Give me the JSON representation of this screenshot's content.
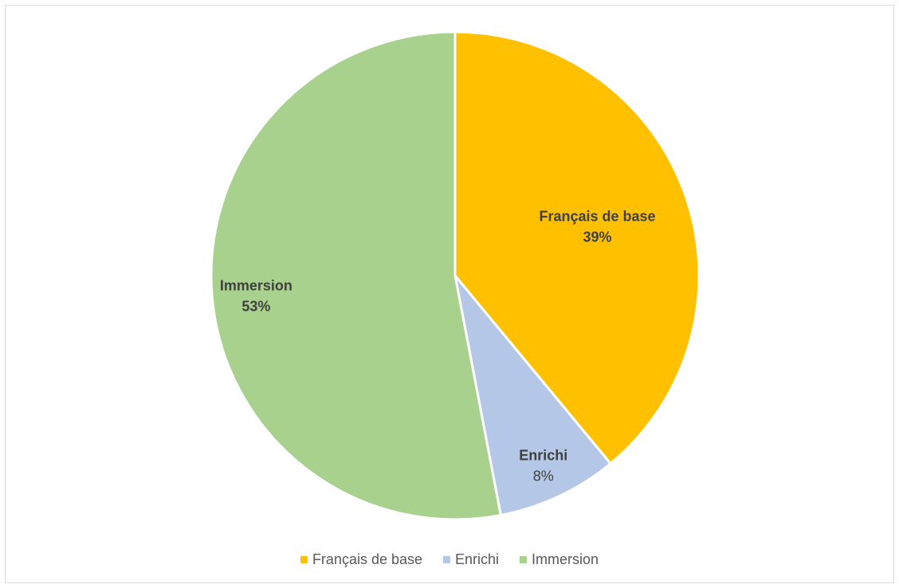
{
  "chart_data": {
    "type": "pie",
    "title": "",
    "slices": [
      {
        "label": "Français de base",
        "value": 39,
        "value_label": "39%",
        "color": "#FFC000",
        "label_style": "bold",
        "value_style": "bold"
      },
      {
        "label": "Enrichi",
        "value": 8,
        "value_label": "8%",
        "color": "#B4C7E7",
        "label_style": "bold",
        "value_style": "normal"
      },
      {
        "label": "Immersion",
        "value": 53,
        "value_label": "53%",
        "color": "#A9D18E",
        "label_style": "bold",
        "value_style": "bold"
      }
    ],
    "start_angle": "12 o'clock",
    "direction": "clockwise",
    "legend_position": "bottom"
  }
}
